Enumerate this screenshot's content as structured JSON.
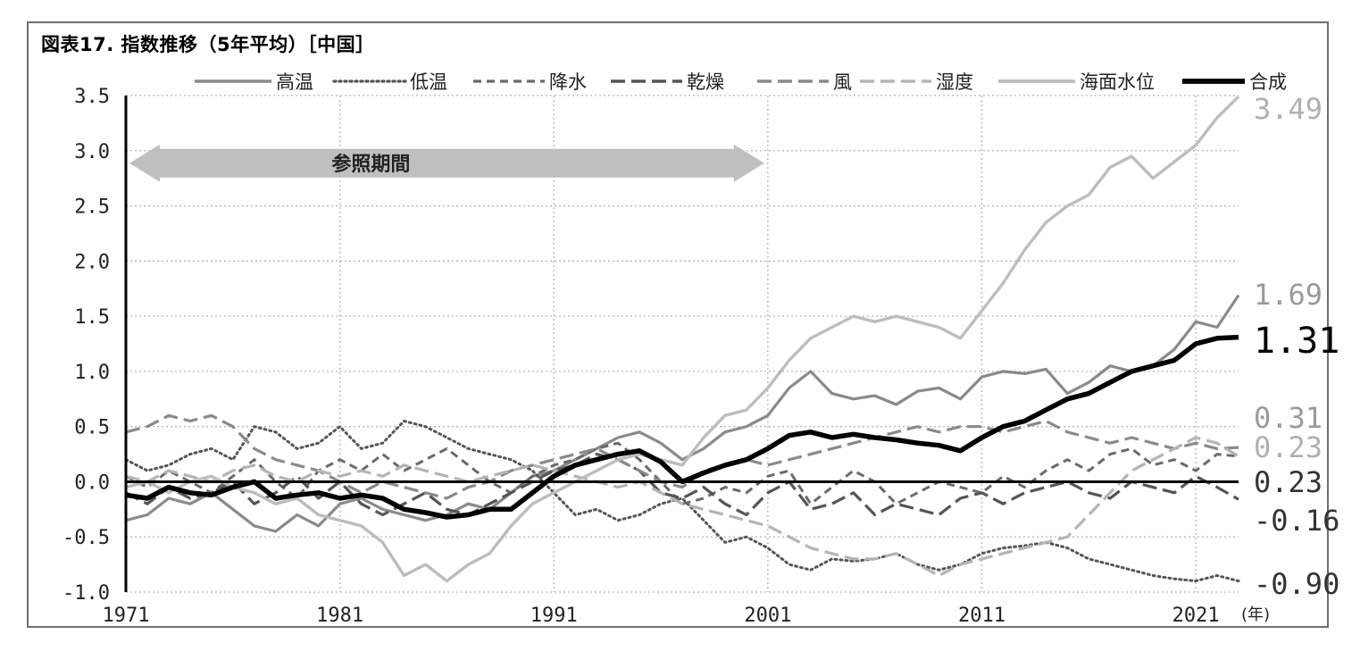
{
  "title": "図表17. 指数推移（5年平均）［中国］",
  "chart_data": {
    "type": "line",
    "title": "図表17. 指数推移（5年平均）［中国］",
    "xlabel": "(年)",
    "ylabel": "",
    "xlim": [
      1971,
      2023
    ],
    "ylim": [
      -1.0,
      3.5
    ],
    "yticks": [
      "3.5",
      "3.0",
      "2.5",
      "2.0",
      "1.5",
      "1.0",
      "0.5",
      "0.0",
      "-0.5",
      "-1.0"
    ],
    "xticks": [
      "1971",
      "1981",
      "1991",
      "2001",
      "2011",
      "2021"
    ],
    "grid": "dotted",
    "legend_position": "top",
    "annotation": {
      "text": "参照期間",
      "from": 1971,
      "to": 2001,
      "y": 3.0
    },
    "series": [
      {
        "name": "高温",
        "color": "#8a8a8a",
        "dash": "solid",
        "width": 3.2,
        "end_label": "1.69",
        "x": [
          1971,
          1972,
          1973,
          1974,
          1975,
          1976,
          1977,
          1978,
          1979,
          1980,
          1981,
          1982,
          1983,
          1984,
          1985,
          1986,
          1987,
          1988,
          1989,
          1990,
          1991,
          1992,
          1993,
          1994,
          1995,
          1996,
          1997,
          1998,
          1999,
          2000,
          2001,
          2002,
          2003,
          2004,
          2005,
          2006,
          2007,
          2008,
          2009,
          2010,
          2011,
          2012,
          2013,
          2014,
          2015,
          2016,
          2017,
          2018,
          2019,
          2020,
          2021,
          2022,
          2023
        ],
        "values": [
          -0.35,
          -0.3,
          -0.15,
          -0.2,
          -0.1,
          -0.25,
          -0.4,
          -0.45,
          -0.3,
          -0.4,
          -0.2,
          -0.15,
          -0.25,
          -0.3,
          -0.35,
          -0.3,
          -0.2,
          -0.25,
          -0.1,
          0.05,
          0.1,
          0.2,
          0.3,
          0.4,
          0.45,
          0.35,
          0.2,
          0.3,
          0.45,
          0.5,
          0.6,
          0.85,
          1.0,
          0.8,
          0.75,
          0.78,
          0.7,
          0.82,
          0.85,
          0.75,
          0.95,
          1.0,
          0.98,
          1.02,
          0.8,
          0.9,
          1.05,
          1.0,
          1.05,
          1.2,
          1.45,
          1.4,
          1.69
        ]
      },
      {
        "name": "低温",
        "color": "#555555",
        "dash": "dotted",
        "width": 3,
        "end_label": "-0.90",
        "x": [
          1971,
          1972,
          1973,
          1974,
          1975,
          1976,
          1977,
          1978,
          1979,
          1980,
          1981,
          1982,
          1983,
          1984,
          1985,
          1986,
          1987,
          1988,
          1989,
          1990,
          1991,
          1992,
          1993,
          1994,
          1995,
          1996,
          1997,
          1998,
          1999,
          2000,
          2001,
          2002,
          2003,
          2004,
          2005,
          2006,
          2007,
          2008,
          2009,
          2010,
          2011,
          2012,
          2013,
          2014,
          2015,
          2016,
          2017,
          2018,
          2019,
          2020,
          2021,
          2022,
          2023
        ],
        "values": [
          0.2,
          0.1,
          0.15,
          0.25,
          0.3,
          0.2,
          0.5,
          0.45,
          0.3,
          0.35,
          0.5,
          0.3,
          0.35,
          0.55,
          0.5,
          0.4,
          0.3,
          0.25,
          0.2,
          0.1,
          -0.1,
          -0.3,
          -0.25,
          -0.35,
          -0.3,
          -0.2,
          -0.15,
          -0.35,
          -0.55,
          -0.5,
          -0.6,
          -0.75,
          -0.8,
          -0.7,
          -0.72,
          -0.7,
          -0.65,
          -0.75,
          -0.8,
          -0.75,
          -0.65,
          -0.6,
          -0.58,
          -0.55,
          -0.6,
          -0.7,
          -0.75,
          -0.8,
          -0.85,
          -0.88,
          -0.9,
          -0.85,
          -0.9
        ]
      },
      {
        "name": "降水",
        "color": "#6a6a6a",
        "dash": "dash",
        "width": 3,
        "end_label": "0.23",
        "x": [
          1971,
          1972,
          1973,
          1974,
          1975,
          1976,
          1977,
          1978,
          1979,
          1980,
          1981,
          1982,
          1983,
          1984,
          1985,
          1986,
          1987,
          1988,
          1989,
          1990,
          1991,
          1992,
          1993,
          1994,
          1995,
          1996,
          1997,
          1998,
          1999,
          2000,
          2001,
          2002,
          2003,
          2004,
          2005,
          2006,
          2007,
          2008,
          2009,
          2010,
          2011,
          2012,
          2013,
          2014,
          2015,
          2016,
          2017,
          2018,
          2019,
          2020,
          2021,
          2022,
          2023
        ],
        "values": [
          0.05,
          -0.05,
          0.1,
          0.0,
          -0.1,
          0.05,
          0.2,
          0.0,
          -0.15,
          0.1,
          0.2,
          0.1,
          0.25,
          0.1,
          0.2,
          0.3,
          0.15,
          0.0,
          -0.1,
          0.05,
          0.15,
          0.2,
          0.3,
          0.35,
          0.2,
          0.0,
          -0.2,
          -0.15,
          -0.05,
          -0.1,
          0.05,
          0.1,
          -0.2,
          -0.05,
          0.1,
          0.0,
          -0.2,
          -0.1,
          0.0,
          -0.05,
          -0.1,
          0.05,
          -0.05,
          0.1,
          0.2,
          0.1,
          0.25,
          0.3,
          0.15,
          0.2,
          0.1,
          0.25,
          0.23
        ]
      },
      {
        "name": "乾燥",
        "color": "#555555",
        "dash": "longdash",
        "width": 3.2,
        "end_label": "-0.16",
        "x": [
          1971,
          1972,
          1973,
          1974,
          1975,
          1976,
          1977,
          1978,
          1979,
          1980,
          1981,
          1982,
          1983,
          1984,
          1985,
          1986,
          1987,
          1988,
          1989,
          1990,
          1991,
          1992,
          1993,
          1994,
          1995,
          1996,
          1997,
          1998,
          1999,
          2000,
          2001,
          2002,
          2003,
          2004,
          2005,
          2006,
          2007,
          2008,
          2009,
          2010,
          2011,
          2012,
          2013,
          2014,
          2015,
          2016,
          2017,
          2018,
          2019,
          2020,
          2021,
          2022,
          2023
        ],
        "values": [
          -0.1,
          -0.2,
          -0.05,
          -0.15,
          -0.1,
          0.0,
          -0.2,
          -0.1,
          0.05,
          -0.15,
          0.0,
          -0.2,
          -0.3,
          -0.2,
          -0.1,
          -0.25,
          -0.3,
          -0.2,
          -0.1,
          0.0,
          0.1,
          0.15,
          0.25,
          0.2,
          0.1,
          -0.1,
          -0.15,
          -0.05,
          -0.2,
          -0.3,
          -0.1,
          0.0,
          -0.25,
          -0.2,
          -0.1,
          -0.3,
          -0.2,
          -0.25,
          -0.3,
          -0.15,
          -0.1,
          -0.2,
          -0.1,
          -0.05,
          0.0,
          -0.1,
          -0.15,
          0.0,
          -0.05,
          -0.1,
          0.05,
          -0.05,
          -0.16
        ]
      },
      {
        "name": "風",
        "color": "#8a8a8a",
        "dash": "longdash",
        "width": 3.2,
        "end_label": "0.31",
        "x": [
          1971,
          1972,
          1973,
          1974,
          1975,
          1976,
          1977,
          1978,
          1979,
          1980,
          1981,
          1982,
          1983,
          1984,
          1985,
          1986,
          1987,
          1988,
          1989,
          1990,
          1991,
          1992,
          1993,
          1994,
          1995,
          1996,
          1997,
          1998,
          1999,
          2000,
          2001,
          2002,
          2003,
          2004,
          2005,
          2006,
          2007,
          2008,
          2009,
          2010,
          2011,
          2012,
          2013,
          2014,
          2015,
          2016,
          2017,
          2018,
          2019,
          2020,
          2021,
          2022,
          2023
        ],
        "values": [
          0.45,
          0.5,
          0.6,
          0.55,
          0.6,
          0.5,
          0.3,
          0.2,
          0.15,
          0.1,
          0.0,
          -0.1,
          0.0,
          -0.05,
          -0.1,
          -0.15,
          -0.05,
          0.0,
          0.1,
          0.15,
          0.2,
          0.25,
          0.3,
          0.2,
          0.1,
          0.0,
          -0.05,
          0.1,
          0.15,
          0.2,
          0.15,
          0.2,
          0.25,
          0.3,
          0.35,
          0.4,
          0.45,
          0.5,
          0.45,
          0.5,
          0.5,
          0.45,
          0.5,
          0.55,
          0.45,
          0.4,
          0.35,
          0.4,
          0.35,
          0.3,
          0.35,
          0.3,
          0.31
        ]
      },
      {
        "name": "湿度",
        "color": "#b4b4b4",
        "dash": "longdash",
        "width": 3.2,
        "end_label": "0.23",
        "x": [
          1971,
          1972,
          1973,
          1974,
          1975,
          1976,
          1977,
          1978,
          1979,
          1980,
          1981,
          1982,
          1983,
          1984,
          1985,
          1986,
          1987,
          1988,
          1989,
          1990,
          1991,
          1992,
          1993,
          1994,
          1995,
          1996,
          1997,
          1998,
          1999,
          2000,
          2001,
          2002,
          2003,
          2004,
          2005,
          2006,
          2007,
          2008,
          2009,
          2010,
          2011,
          2012,
          2013,
          2014,
          2015,
          2016,
          2017,
          2018,
          2019,
          2020,
          2021,
          2022,
          2023
        ],
        "values": [
          0.05,
          0.0,
          0.1,
          0.05,
          0.0,
          0.1,
          0.15,
          0.05,
          0.0,
          0.1,
          0.05,
          0.1,
          0.05,
          0.15,
          0.1,
          0.05,
          0.0,
          0.05,
          0.1,
          0.15,
          0.1,
          0.05,
          0.0,
          -0.05,
          0.0,
          -0.1,
          -0.2,
          -0.25,
          -0.3,
          -0.35,
          -0.4,
          -0.5,
          -0.6,
          -0.65,
          -0.7,
          -0.7,
          -0.65,
          -0.75,
          -0.85,
          -0.75,
          -0.7,
          -0.65,
          -0.6,
          -0.55,
          -0.5,
          -0.3,
          -0.1,
          0.1,
          0.2,
          0.3,
          0.4,
          0.35,
          0.23
        ]
      },
      {
        "name": "海面水位",
        "color": "#bdbdbd",
        "dash": "solid",
        "width": 3.4,
        "end_label": "3.49",
        "x": [
          1971,
          1972,
          1973,
          1974,
          1975,
          1976,
          1977,
          1978,
          1979,
          1980,
          1981,
          1982,
          1983,
          1984,
          1985,
          1986,
          1987,
          1988,
          1989,
          1990,
          1991,
          1992,
          1993,
          1994,
          1995,
          1996,
          1997,
          1998,
          1999,
          2000,
          2001,
          2002,
          2003,
          2004,
          2005,
          2006,
          2007,
          2008,
          2009,
          2010,
          2011,
          2012,
          2013,
          2014,
          2015,
          2016,
          2017,
          2018,
          2019,
          2020,
          2021,
          2022,
          2023
        ],
        "values": [
          -0.05,
          0.0,
          -0.1,
          0.0,
          0.05,
          -0.05,
          -0.1,
          -0.2,
          -0.15,
          -0.3,
          -0.35,
          -0.4,
          -0.55,
          -0.85,
          -0.75,
          -0.9,
          -0.75,
          -0.65,
          -0.4,
          -0.2,
          -0.1,
          0.0,
          0.1,
          0.2,
          0.25,
          0.2,
          0.15,
          0.4,
          0.6,
          0.65,
          0.85,
          1.1,
          1.3,
          1.4,
          1.5,
          1.45,
          1.5,
          1.45,
          1.4,
          1.3,
          1.55,
          1.8,
          2.1,
          2.35,
          2.5,
          2.6,
          2.85,
          2.95,
          2.75,
          2.9,
          3.05,
          3.3,
          3.49
        ]
      },
      {
        "name": "合成",
        "color": "#000000",
        "dash": "solid",
        "width": 5.5,
        "end_label": "1.31",
        "x": [
          1971,
          1972,
          1973,
          1974,
          1975,
          1976,
          1977,
          1978,
          1979,
          1980,
          1981,
          1982,
          1983,
          1984,
          1985,
          1986,
          1987,
          1988,
          1989,
          1990,
          1991,
          1992,
          1993,
          1994,
          1995,
          1996,
          1997,
          1998,
          1999,
          2000,
          2001,
          2002,
          2003,
          2004,
          2005,
          2006,
          2007,
          2008,
          2009,
          2010,
          2011,
          2012,
          2013,
          2014,
          2015,
          2016,
          2017,
          2018,
          2019,
          2020,
          2021,
          2022,
          2023
        ],
        "values": [
          -0.12,
          -0.15,
          -0.05,
          -0.1,
          -0.12,
          -0.05,
          0.0,
          -0.15,
          -0.12,
          -0.1,
          -0.15,
          -0.12,
          -0.15,
          -0.25,
          -0.28,
          -0.32,
          -0.3,
          -0.25,
          -0.25,
          -0.1,
          0.05,
          0.15,
          0.2,
          0.25,
          0.28,
          0.18,
          0.0,
          0.08,
          0.15,
          0.2,
          0.3,
          0.42,
          0.45,
          0.4,
          0.43,
          0.4,
          0.38,
          0.35,
          0.33,
          0.28,
          0.4,
          0.5,
          0.55,
          0.65,
          0.75,
          0.8,
          0.9,
          1.0,
          1.05,
          1.1,
          1.25,
          1.3,
          1.31
        ]
      }
    ]
  }
}
